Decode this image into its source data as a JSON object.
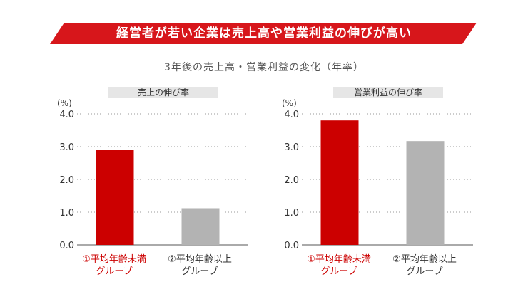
{
  "banner": {
    "title": "経営者が若い企業は売上高や営業利益の伸びが高い",
    "color": "#d7161b"
  },
  "subtitle": "3年後の売上高・営業利益の変化（年率）",
  "colors": {
    "young": "#cc0000",
    "old": "#b3b3b3",
    "label_young": "#cc0000",
    "label_old": "#333333"
  },
  "chart_data": [
    {
      "type": "bar",
      "title": "売上の伸び率",
      "ylabel": "(%)",
      "ylim": [
        0,
        4
      ],
      "yticks": [
        "0.0",
        "1.0",
        "2.0",
        "3.0",
        "4.0"
      ],
      "grid": true,
      "categories": [
        {
          "line1": "①平均年齢未満",
          "line2": "グループ"
        },
        {
          "line1": "②平均年齢以上",
          "line2": "グループ"
        }
      ],
      "values": [
        2.9,
        1.12
      ]
    },
    {
      "type": "bar",
      "title": "営業利益の伸び率",
      "ylabel": "(%)",
      "ylim": [
        0,
        4
      ],
      "yticks": [
        "0.0",
        "1.0",
        "2.0",
        "3.0",
        "4.0"
      ],
      "grid": true,
      "categories": [
        {
          "line1": "①平均年齢未満",
          "line2": "グループ"
        },
        {
          "line1": "②平均年齢以上",
          "line2": "グループ"
        }
      ],
      "values": [
        3.8,
        3.17
      ]
    }
  ]
}
